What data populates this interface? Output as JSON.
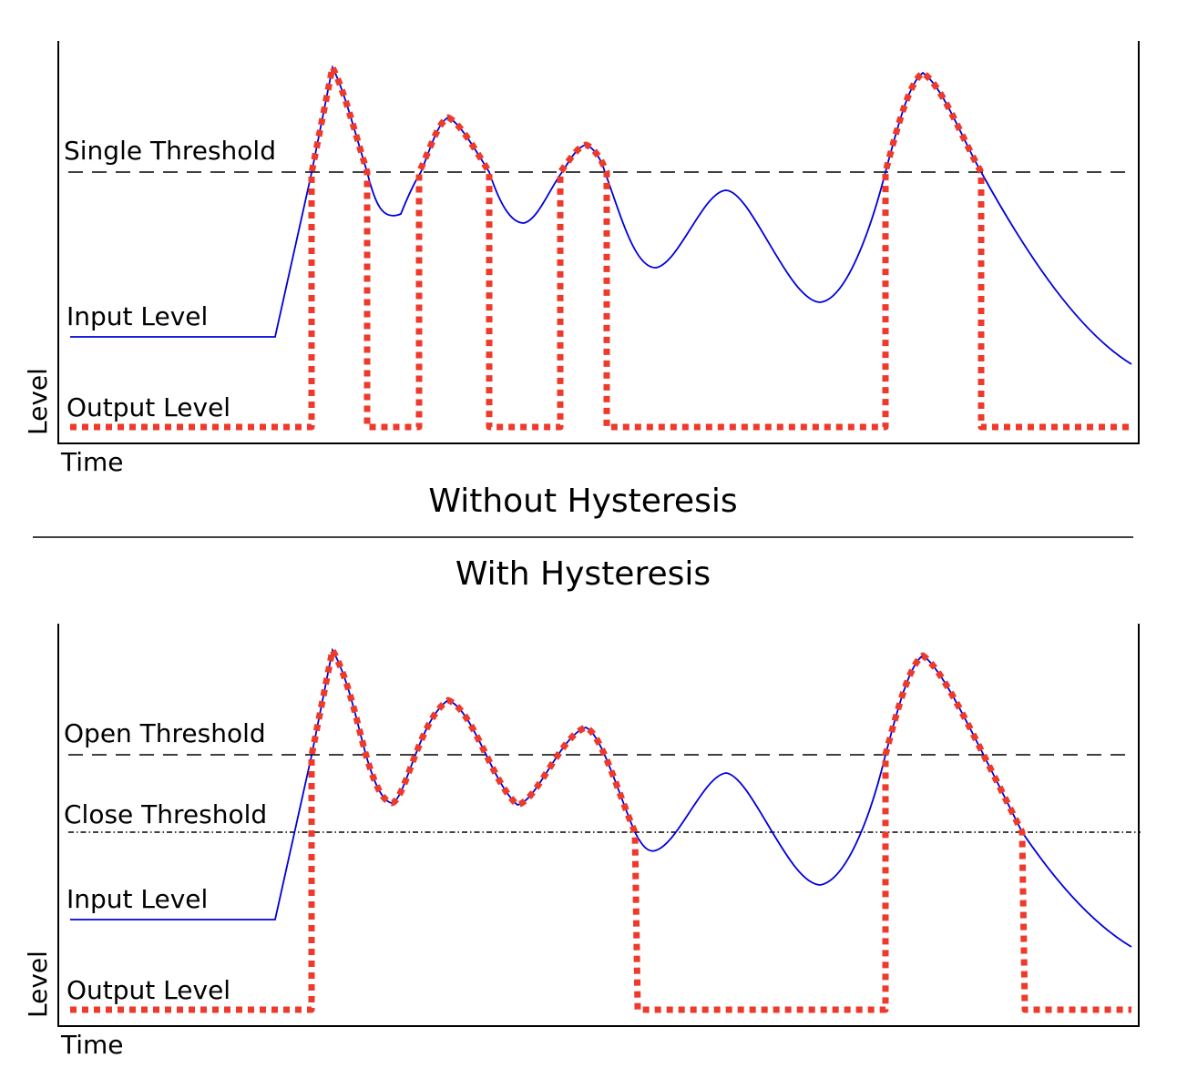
{
  "titles": {
    "without": "Without Hysteresis",
    "with": "With Hysteresis"
  },
  "panel_top": {
    "axis_y_label": "Level",
    "axis_x_label": "Time",
    "threshold_label": "Single Threshold",
    "input_label": "Input Level",
    "output_label": "Output Level"
  },
  "panel_bottom": {
    "axis_y_label": "Level",
    "axis_x_label": "Time",
    "open_threshold_label": "Open Threshold",
    "close_threshold_label": "Close Threshold",
    "input_label": "Input Level",
    "output_label": "Output Level"
  },
  "colors": {
    "input": "#0000dd",
    "output": "#ee3a2a",
    "threshold": "#000000"
  }
}
